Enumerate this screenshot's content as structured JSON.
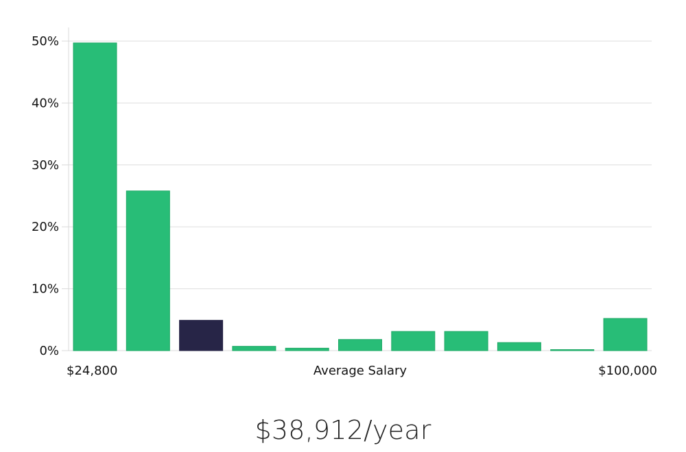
{
  "chart_data": {
    "type": "bar",
    "xlabel": "Average Salary",
    "x_range_labels": {
      "min": "$24,800",
      "max": "$100,000"
    },
    "y_tick_labels": [
      "0%",
      "10%",
      "20%",
      "30%",
      "40%",
      "50%"
    ],
    "ylim": [
      0,
      52
    ],
    "grid": true,
    "values": [
      49.7,
      25.8,
      4.9,
      0.7,
      0.4,
      1.8,
      3.1,
      3.1,
      1.3,
      0.1,
      5.2
    ],
    "highlight_index": 2,
    "colors": {
      "bar": "#28bd77",
      "bar_stroke": "#1ea865",
      "highlight": "#272547",
      "grid": "#dedede",
      "axis": "#d8d8d8"
    }
  },
  "headline": "$38,912/year"
}
